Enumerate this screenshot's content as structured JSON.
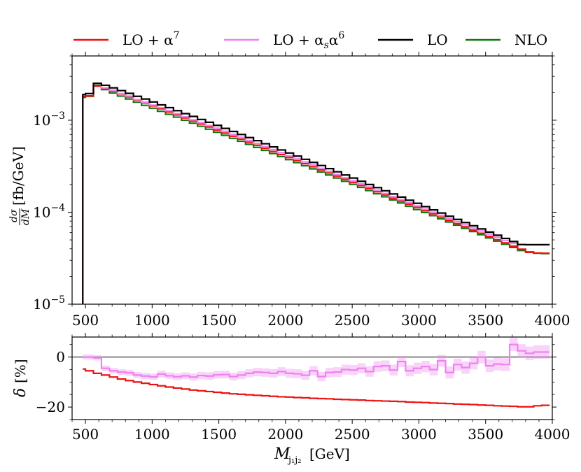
{
  "chart_data": [
    {
      "type": "line",
      "style": "step",
      "xlabel": "M_j1j2 [GeV]",
      "ylabel": "dσ/dM [fb/GeV]",
      "yscale": "log",
      "xlim": [
        400,
        4000
      ],
      "ylim": [
        1e-05,
        0.005
      ],
      "x_ticks": [
        500,
        1000,
        1500,
        2000,
        2500,
        3000,
        3500,
        4000
      ],
      "x_tick_labels": [
        "500",
        "1000",
        "1500",
        "2000",
        "2500",
        "3000",
        "3500",
        "4000"
      ],
      "y_tick_labels": [
        {
          "base": "10",
          "exp": "−3",
          "value": 0.001
        },
        {
          "base": "10",
          "exp": "−4",
          "value": 0.0001
        },
        {
          "base": "10",
          "exp": "−5",
          "value": 1e-05
        }
      ],
      "bin_edges": [
        480,
        500,
        560,
        620,
        680,
        740,
        800,
        860,
        920,
        980,
        1040,
        1100,
        1160,
        1220,
        1280,
        1340,
        1400,
        1460,
        1520,
        1580,
        1640,
        1700,
        1760,
        1820,
        1880,
        1940,
        2000,
        2060,
        2120,
        2180,
        2240,
        2300,
        2360,
        2420,
        2480,
        2540,
        2600,
        2660,
        2720,
        2780,
        2840,
        2900,
        2960,
        3020,
        3080,
        3140,
        3200,
        3260,
        3320,
        3380,
        3440,
        3500,
        3560,
        3620,
        3680,
        3740,
        3800,
        3860,
        3920,
        3980
      ],
      "series": [
        {
          "name": "LO",
          "color": "#000000",
          "values": [
            0.0019,
            0.00195,
            0.00252,
            0.0024,
            0.00225,
            0.0021,
            0.00196,
            0.00182,
            0.0017,
            0.00158,
            0.00147,
            0.00137,
            0.00127,
            0.00118,
            0.0011,
            0.00102,
            0.00095,
            0.00088,
            0.000815,
            0.000755,
            0.0007,
            0.000648,
            0.0006,
            0.000555,
            0.000513,
            0.000475,
            0.00044,
            0.000407,
            0.000376,
            0.000348,
            0.000322,
            0.000298,
            0.000275,
            0.000254,
            0.000235,
            0.000217,
            0.0002,
            0.000185,
            0.000171,
            0.000158,
            0.000146,
            0.000135,
            0.000125,
            0.000115,
            0.000106,
            9.8e-05,
            9.05e-05,
            8.35e-05,
            7.72e-05,
            7.13e-05,
            6.58e-05,
            6.08e-05,
            5.62e-05,
            5.19e-05,
            4.8e-05,
            4.45e-05,
            4.43e-05,
            4.43e-05,
            4.43e-05
          ]
        },
        {
          "name": "LO + α^7",
          "color": "#ee1111",
          "values": [
            0.00181,
            0.00184,
            0.00235,
            0.00223,
            0.00208,
            0.00193,
            0.00179,
            0.00166,
            0.00154,
            0.00143,
            0.00133,
            0.00123,
            0.00114,
            0.00106,
            0.00098,
            0.000908,
            0.000843,
            0.000782,
            0.000724,
            0.000671,
            0.000622,
            0.000577,
            0.000534,
            0.000495,
            0.000458,
            0.000424,
            0.000393,
            0.000364,
            0.000337,
            0.000312,
            0.000288,
            0.000267,
            0.000247,
            0.000228,
            0.000211,
            0.000195,
            0.000181,
            0.000167,
            0.000154,
            0.000142,
            0.000132,
            0.000122,
            0.000113,
            0.000104,
            9.6e-05,
            8.85e-05,
            8.15e-05,
            7.52e-05,
            6.94e-05,
            6.4e-05,
            5.9e-05,
            5.45e-05,
            5.02e-05,
            4.64e-05,
            4.28e-05,
            3.96e-05,
            3.66e-05,
            3.6e-05,
            3.58e-05
          ]
        },
        {
          "name": "LO + α_s α^6",
          "color": "#ee82ee",
          "values": [
            0.0019,
            0.00195,
            0.00251,
            0.00225,
            0.00212,
            0.00195,
            0.00183,
            0.00168,
            0.00157,
            0.00146,
            0.00137,
            0.00127,
            0.00118,
            0.00109,
            0.00101,
            0.00094,
            0.000877,
            0.000818,
            0.000758,
            0.000703,
            0.000652,
            0.000603,
            0.00056,
            0.000518,
            0.00048,
            0.000444,
            0.00041,
            0.00038,
            0.000351,
            0.000326,
            0.0003,
            0.000278,
            0.000257,
            0.000237,
            0.00022,
            0.000203,
            0.000188,
            0.000174,
            0.00016,
            0.000148,
            0.000137,
            0.000127,
            0.000117,
            0.000108,
            0.0001,
            9.25e-05,
            8.55e-05,
            7.9e-05,
            7.3e-05,
            6.75e-05,
            6.25e-05,
            5.78e-05,
            5.34e-05,
            4.95e-05,
            4.58e-05,
            4.45e-05,
            4.45e-05,
            4.45e-05,
            4.46e-05
          ]
        },
        {
          "name": "NLO",
          "color": "#117711",
          "values": [
            0.00177,
            0.00182,
            0.0024,
            0.00215,
            0.00198,
            0.00183,
            0.0017,
            0.00157,
            0.00145,
            0.00135,
            0.00125,
            0.00116,
            0.00108,
            0.001,
            0.000928,
            0.00086,
            0.000798,
            0.00074,
            0.000686,
            0.000636,
            0.00059,
            0.000547,
            0.000507,
            0.00047,
            0.000435,
            0.000403,
            0.000373,
            0.000346,
            0.00032,
            0.000296,
            0.000274,
            0.000254,
            0.000235,
            0.000217,
            0.000201,
            0.000186,
            0.000172,
            0.000159,
            0.000147,
            0.000136,
            0.000126,
            0.000116,
            0.000107,
            9.93e-05,
            9.17e-05,
            8.47e-05,
            7.82e-05,
            7.22e-05,
            6.67e-05,
            6.16e-05,
            5.69e-05,
            5.25e-05,
            4.85e-05,
            4.48e-05,
            4.14e-05,
            3.83e-05,
            3.7e-05,
            3.58e-05,
            3.55e-05
          ]
        }
      ],
      "legend": {
        "placement": "top",
        "entries": [
          {
            "label_main": "LO + α",
            "label_sup": "7",
            "color": "#ee1111"
          },
          {
            "label_main": "LO + α",
            "label_sub": "s",
            "label_mid": "α",
            "label_sup": "6",
            "color": "#ee82ee"
          },
          {
            "label_main": "LO",
            "color": "#000000"
          },
          {
            "label_main": "NLO",
            "color": "#117711"
          }
        ]
      }
    },
    {
      "type": "line",
      "style": "step",
      "ylabel": "δ [%]",
      "xlabel": "M_j1j2 [GeV]",
      "xlim": [
        400,
        4000
      ],
      "ylim": [
        -25,
        8
      ],
      "y_ticks": [
        0,
        -20
      ],
      "y_tick_labels": [
        "0",
        "−20"
      ],
      "x_ticks": [
        500,
        1000,
        1500,
        2000,
        2500,
        3000,
        3500,
        4000
      ],
      "x_tick_labels": [
        "500",
        "1000",
        "1500",
        "2000",
        "2500",
        "3000",
        "3500",
        "4000"
      ],
      "bin_edges": [
        480,
        500,
        560,
        620,
        680,
        740,
        800,
        860,
        920,
        980,
        1040,
        1100,
        1160,
        1220,
        1280,
        1340,
        1400,
        1460,
        1520,
        1580,
        1640,
        1700,
        1760,
        1820,
        1880,
        1940,
        2000,
        2060,
        2120,
        2180,
        2240,
        2300,
        2360,
        2420,
        2480,
        2540,
        2600,
        2660,
        2720,
        2780,
        2840,
        2900,
        2960,
        3020,
        3080,
        3140,
        3200,
        3260,
        3320,
        3380,
        3440,
        3500,
        3560,
        3620,
        3680,
        3740,
        3800,
        3860,
        3920,
        3980
      ],
      "series": [
        {
          "name": "LO + α^7",
          "color": "#ee1111",
          "band": false,
          "values": [
            -4.8,
            -5.5,
            -6.5,
            -7.2,
            -8.0,
            -8.8,
            -9.4,
            -10.0,
            -10.5,
            -11.0,
            -11.5,
            -12.0,
            -12.4,
            -12.8,
            -13.2,
            -13.5,
            -13.8,
            -14.1,
            -14.4,
            -14.7,
            -14.9,
            -15.1,
            -15.3,
            -15.5,
            -15.7,
            -15.9,
            -16.0,
            -16.2,
            -16.3,
            -16.5,
            -16.6,
            -16.7,
            -16.9,
            -17.0,
            -17.1,
            -17.2,
            -17.4,
            -17.5,
            -17.6,
            -17.7,
            -17.8,
            -18.0,
            -18.1,
            -18.2,
            -18.4,
            -18.5,
            -18.6,
            -18.8,
            -18.9,
            -19.0,
            -19.2,
            -19.3,
            -19.5,
            -19.6,
            -19.7,
            -19.9,
            -19.9,
            -19.5,
            -19.3
          ]
        },
        {
          "name": "LO + α_s α^6",
          "color": "#ee82ee",
          "band": true,
          "values": [
            0.0,
            0.0,
            -0.3,
            -4.5,
            -5.5,
            -6.0,
            -6.3,
            -7.2,
            -7.6,
            -7.9,
            -6.8,
            -7.5,
            -7.9,
            -7.5,
            -8.0,
            -7.4,
            -7.6,
            -7.1,
            -7.0,
            -7.8,
            -7.2,
            -6.5,
            -6.0,
            -6.2,
            -6.5,
            -5.8,
            -6.5,
            -6.7,
            -7.3,
            -5.5,
            -7.8,
            -6.2,
            -6.0,
            -5.0,
            -5.2,
            -4.5,
            -5.8,
            -3.8,
            -3.5,
            -5.2,
            -1.8,
            -5.5,
            -4.5,
            -3.8,
            -5.0,
            -1.5,
            -6.2,
            -3.0,
            -4.2,
            -2.5,
            0.0,
            -3.5,
            -2.8,
            -3.0,
            5.0,
            2.5,
            1.5,
            2.0,
            2.0
          ]
        }
      ]
    }
  ]
}
